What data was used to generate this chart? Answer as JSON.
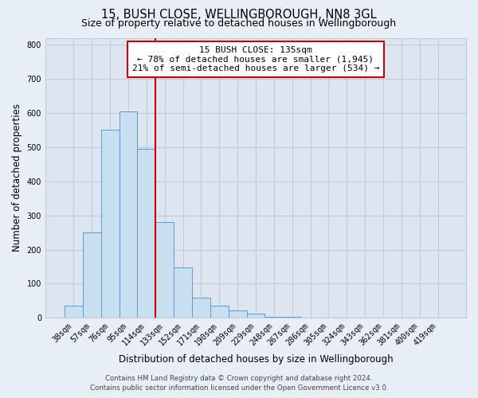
{
  "title": "15, BUSH CLOSE, WELLINGBOROUGH, NN8 3GL",
  "subtitle": "Size of property relative to detached houses in Wellingborough",
  "xlabel": "Distribution of detached houses by size in Wellingborough",
  "ylabel": "Number of detached properties",
  "bin_labels": [
    "38sqm",
    "57sqm",
    "76sqm",
    "95sqm",
    "114sqm",
    "133sqm",
    "152sqm",
    "171sqm",
    "190sqm",
    "209sqm",
    "229sqm",
    "248sqm",
    "267sqm",
    "286sqm",
    "305sqm",
    "324sqm",
    "343sqm",
    "362sqm",
    "381sqm",
    "400sqm",
    "419sqm"
  ],
  "bar_heights": [
    35,
    250,
    550,
    605,
    495,
    280,
    148,
    60,
    35,
    22,
    13,
    3,
    2,
    1,
    1,
    0,
    0,
    0,
    0,
    0,
    0
  ],
  "bar_color": "#c8dff0",
  "bar_edge_color": "#5b9bd5",
  "vline_color": "#cc0000",
  "annotation_text_line1": "15 BUSH CLOSE: 135sqm",
  "annotation_text_line2": "← 78% of detached houses are smaller (1,945)",
  "annotation_text_line3": "21% of semi-detached houses are larger (534) →",
  "annotation_box_color": "white",
  "annotation_box_edge": "#cc0000",
  "ylim": [
    0,
    820
  ],
  "yticks": [
    0,
    100,
    200,
    300,
    400,
    500,
    600,
    700,
    800
  ],
  "footer_line1": "Contains HM Land Registry data © Crown copyright and database right 2024.",
  "footer_line2": "Contains public sector information licensed under the Open Government Licence v3.0.",
  "bg_color": "#e8eef5",
  "plot_bg_color": "#dde6f0",
  "grid_color": "#c0ccd8",
  "title_fontsize": 10.5,
  "subtitle_fontsize": 9,
  "axis_label_fontsize": 8.5,
  "tick_fontsize": 7,
  "annotation_fontsize": 8,
  "footer_fontsize": 6.2,
  "vline_bin_index": 5
}
